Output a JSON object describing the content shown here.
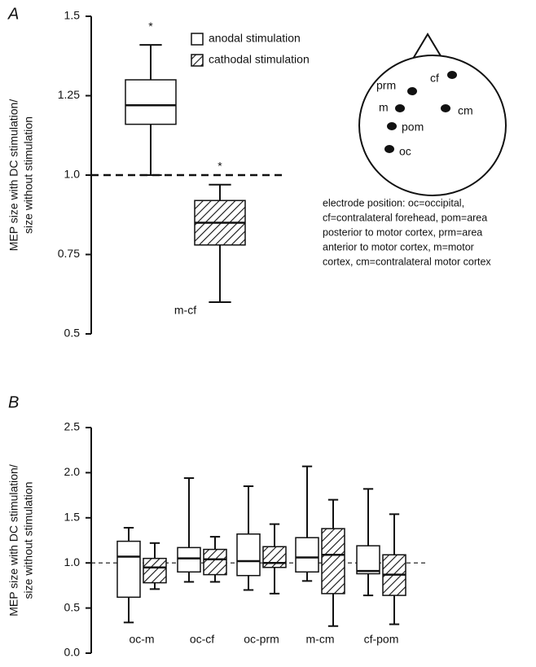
{
  "chart_data": [
    {
      "type": "box",
      "label": "A",
      "ylabel": [
        "MEP size with DC stimulation/",
        "size without stimulation"
      ],
      "categories": [
        "m-cf"
      ],
      "ylim": [
        0.5,
        1.5
      ],
      "yticks": [
        0.5,
        0.75,
        {
          "value": 1,
          "label": "1.0"
        },
        1.25,
        1.5
      ],
      "refline": 1,
      "legend": "upper-right",
      "annotations": [
        "*",
        "*"
      ],
      "series": [
        {
          "name": "anodal stimulation",
          "color": "#ffffff",
          "hatch": false,
          "values": [
            {
              "min": 1.0,
              "q1": 1.16,
              "median": 1.22,
              "q3": 1.3,
              "max": 1.41
            }
          ]
        },
        {
          "name": "cathodal stimulation",
          "color": "#ffffff",
          "hatch": true,
          "values": [
            {
              "min": 0.6,
              "q1": 0.78,
              "median": 0.85,
              "q3": 0.92,
              "max": 0.97
            }
          ]
        }
      ]
    },
    {
      "type": "box",
      "label": "B",
      "ylabel": [
        "MEP size with DC stimulation/",
        "size without stimulation"
      ],
      "categories": [
        "oc-m",
        "oc-cf",
        "oc-prm",
        "m-cm",
        "cf-pom"
      ],
      "ylim": [
        0,
        2.5
      ],
      "yticks": [
        {
          "value": 0,
          "label": "0.0"
        },
        0.5,
        {
          "value": 1,
          "label": "1.0"
        },
        1.5,
        {
          "value": 2,
          "label": "2.0"
        },
        2.5
      ],
      "refline": 1,
      "series": [
        {
          "color": "#ffffff",
          "hatch": false,
          "values": [
            {
              "min": 0.34,
              "q1": 0.62,
              "median": 1.07,
              "q3": 1.24,
              "max": 1.39
            },
            {
              "min": 0.79,
              "q1": 0.9,
              "median": 1.05,
              "q3": 1.17,
              "max": 1.94
            },
            {
              "min": 0.7,
              "q1": 0.86,
              "median": 1.02,
              "q3": 1.32,
              "max": 1.85
            },
            {
              "min": 0.8,
              "q1": 0.9,
              "median": 1.06,
              "q3": 1.28,
              "max": 2.07
            },
            {
              "min": 0.64,
              "q1": 0.88,
              "median": 0.91,
              "q3": 1.19,
              "max": 1.82
            }
          ]
        },
        {
          "color": "#ffffff",
          "hatch": true,
          "values": [
            {
              "min": 0.71,
              "q1": 0.78,
              "median": 0.95,
              "q3": 1.05,
              "max": 1.22
            },
            {
              "min": 0.79,
              "q1": 0.87,
              "median": 1.04,
              "q3": 1.15,
              "max": 1.29
            },
            {
              "min": 0.66,
              "q1": 0.95,
              "median": 1.0,
              "q3": 1.18,
              "max": 1.43
            },
            {
              "min": 0.3,
              "q1": 0.66,
              "median": 1.09,
              "q3": 1.38,
              "max": 1.7
            },
            {
              "min": 0.32,
              "q1": 0.64,
              "median": 0.87,
              "q3": 1.09,
              "max": 1.54
            }
          ]
        }
      ]
    }
  ],
  "diagram": {
    "electrodes": [
      "cf",
      "prm",
      "m",
      "cm",
      "pom",
      "oc"
    ],
    "caption": [
      "electrode position: oc=occipital,",
      "cf=contralateral forehead, pom=area",
      "posterior to motor cortex, prm=area",
      "anterior to motor cortex, m=motor",
      "cortex, cm=contralateral motor cortex"
    ]
  }
}
